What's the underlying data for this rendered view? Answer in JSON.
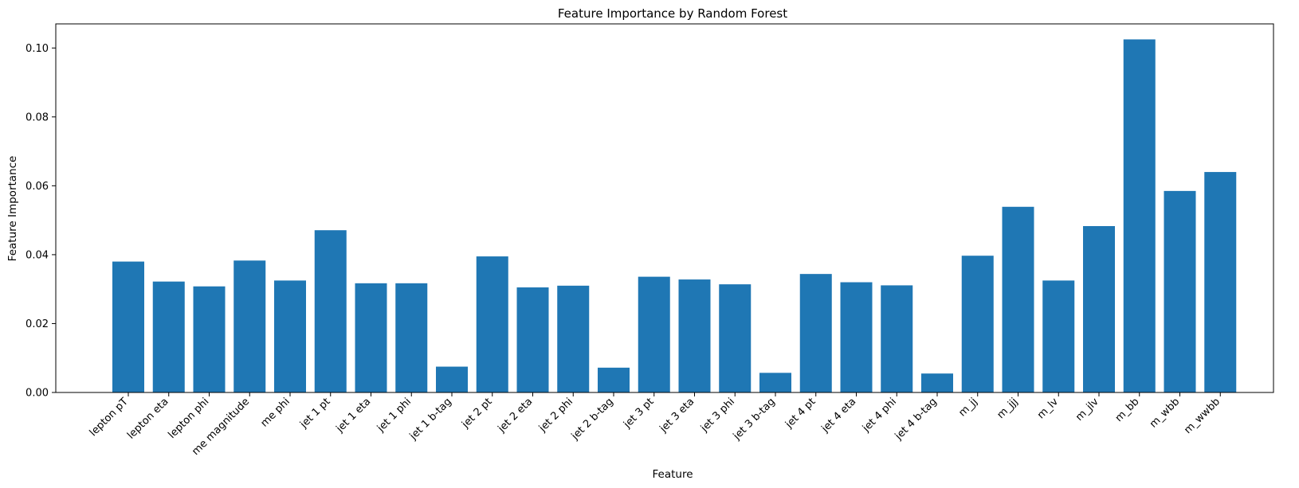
{
  "chart_data": {
    "type": "bar",
    "title": "Feature Importance by Random Forest",
    "xlabel": "Feature",
    "ylabel": "Feature Importance",
    "ylim": [
      0,
      0.107
    ],
    "yticks": [
      "0.00",
      "0.02",
      "0.04",
      "0.06",
      "0.08",
      "0.10"
    ],
    "grid": false,
    "bar_color": "#1f77b4",
    "categories": [
      "lepton pT",
      "lepton eta",
      "lepton phi",
      "me magnitude",
      "me phi",
      "jet 1 pt",
      "jet 1 eta",
      "jet 1 phi",
      "jet 1 b-tag",
      "jet 2 pt",
      "jet 2 eta",
      "jet 2 phi",
      "jet 2 b-tag",
      "jet 3 pt",
      "jet 3 eta",
      "jet 3 phi",
      "jet 3 b-tag",
      "jet 4 pt",
      "jet 4 eta",
      "jet 4 phi",
      "jet 4 b-tag",
      "m_jj",
      "m_jjj",
      "m_lv",
      "m_jlv",
      "m_bb",
      "m_wbb",
      "m_wwbb"
    ],
    "values": [
      0.038,
      0.0322,
      0.0308,
      0.0383,
      0.0325,
      0.0471,
      0.0317,
      0.0317,
      0.0075,
      0.0395,
      0.0305,
      0.031,
      0.0072,
      0.0336,
      0.0328,
      0.0314,
      0.0057,
      0.0344,
      0.032,
      0.0311,
      0.0055,
      0.0397,
      0.0539,
      0.0325,
      0.0483,
      0.1025,
      0.0585,
      0.064
    ]
  }
}
